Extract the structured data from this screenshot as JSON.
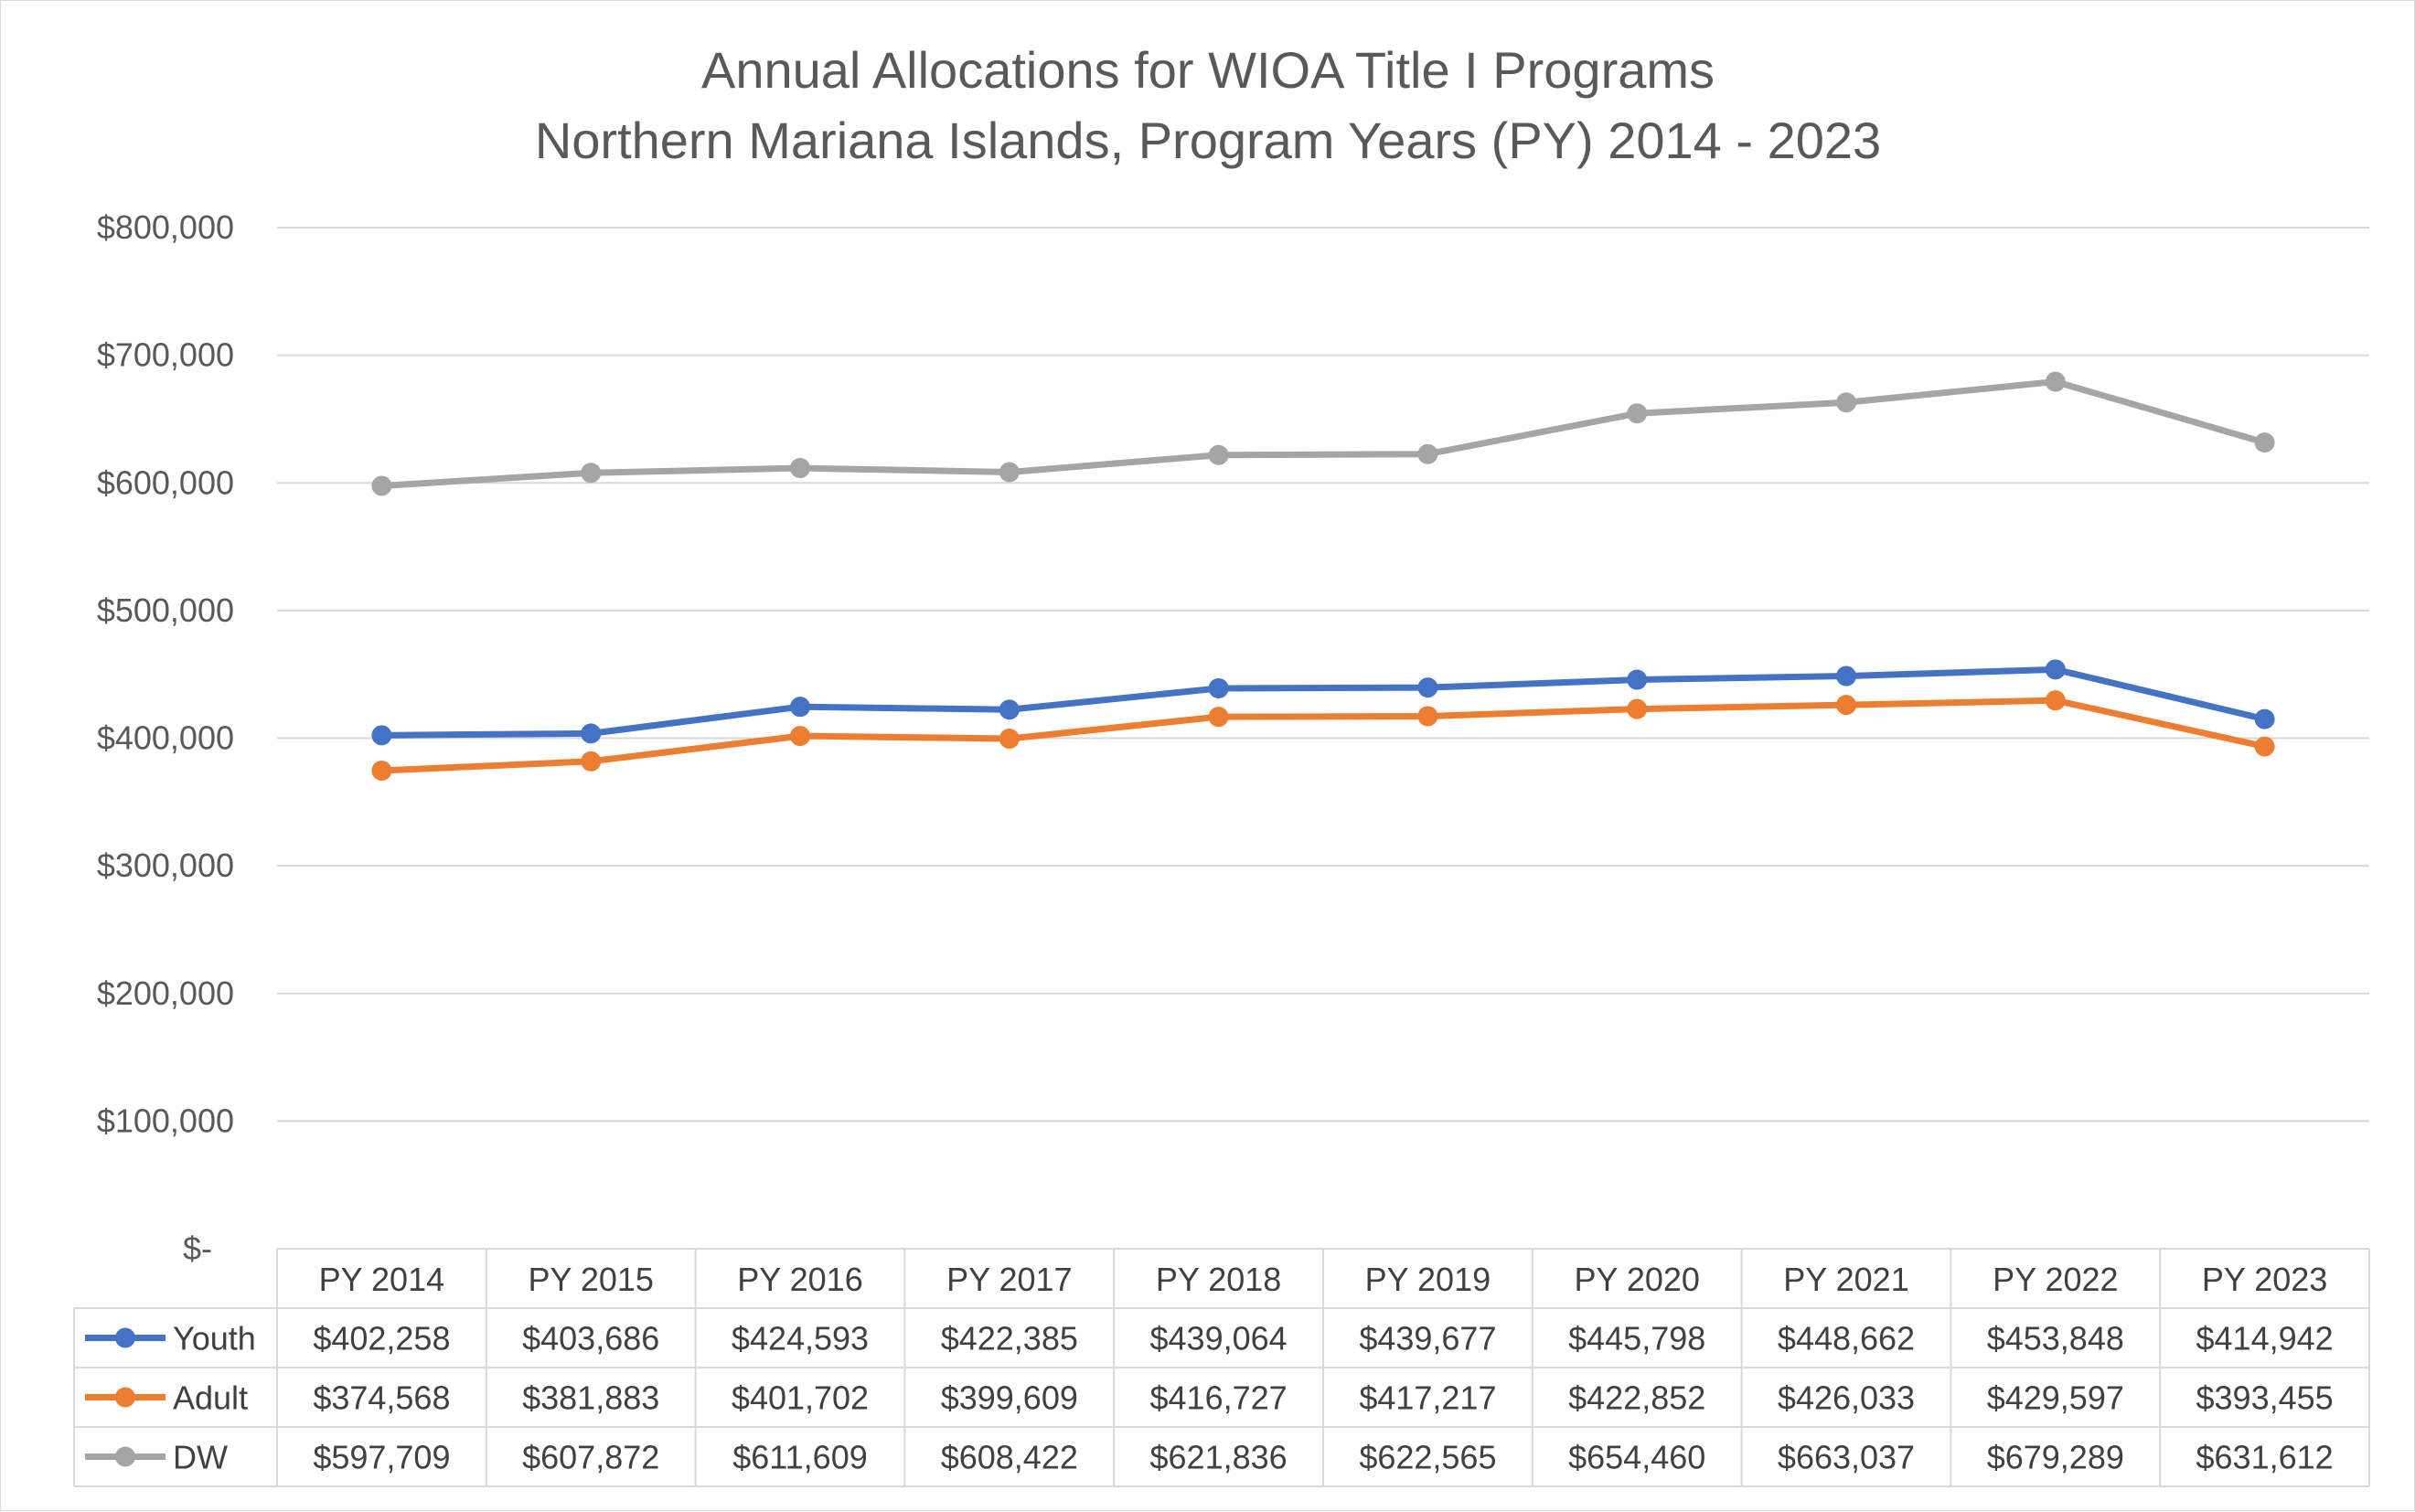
{
  "chart_data": {
    "type": "line",
    "title": "Annual Allocations for WIOA Title I Programs",
    "subtitle": "Northern Mariana Islands, Program Years (PY) 2014 - 2023",
    "categories": [
      "PY 2014",
      "PY 2015",
      "PY 2016",
      "PY 2017",
      "PY 2018",
      "PY 2019",
      "PY 2020",
      "PY 2021",
      "PY 2022",
      "PY 2023"
    ],
    "y_ticks": [
      "$-",
      "$100,000",
      "$200,000",
      "$300,000",
      "$400,000",
      "$500,000",
      "$600,000",
      "$700,000",
      "$800,000"
    ],
    "ylim": [
      0,
      800000
    ],
    "grid": true,
    "legend_placement": "data table, left column",
    "series": [
      {
        "name": "Youth",
        "color": "#4472c4",
        "values": [
          402258,
          403686,
          424593,
          422385,
          439064,
          439677,
          445798,
          448662,
          453848,
          414942
        ],
        "labels": [
          "$402,258",
          "$403,686",
          "$424,593",
          "$422,385",
          "$439,064",
          "$439,677",
          "$445,798",
          "$448,662",
          "$453,848",
          "$414,942"
        ]
      },
      {
        "name": "Adult",
        "color": "#ed7d31",
        "values": [
          374568,
          381883,
          401702,
          399609,
          416727,
          417217,
          422852,
          426033,
          429597,
          393455
        ],
        "labels": [
          "$374,568",
          "$381,883",
          "$401,702",
          "$399,609",
          "$416,727",
          "$417,217",
          "$422,852",
          "$426,033",
          "$429,597",
          "$393,455"
        ]
      },
      {
        "name": "DW",
        "color": "#a5a5a5",
        "values": [
          597709,
          607872,
          611609,
          608422,
          621836,
          622565,
          654460,
          663037,
          679289,
          631612
        ],
        "labels": [
          "$597,709",
          "$607,872",
          "$611,609",
          "$608,422",
          "$621,836",
          "$622,565",
          "$654,460",
          "$663,037",
          "$679,289",
          "$631,612"
        ]
      }
    ]
  }
}
